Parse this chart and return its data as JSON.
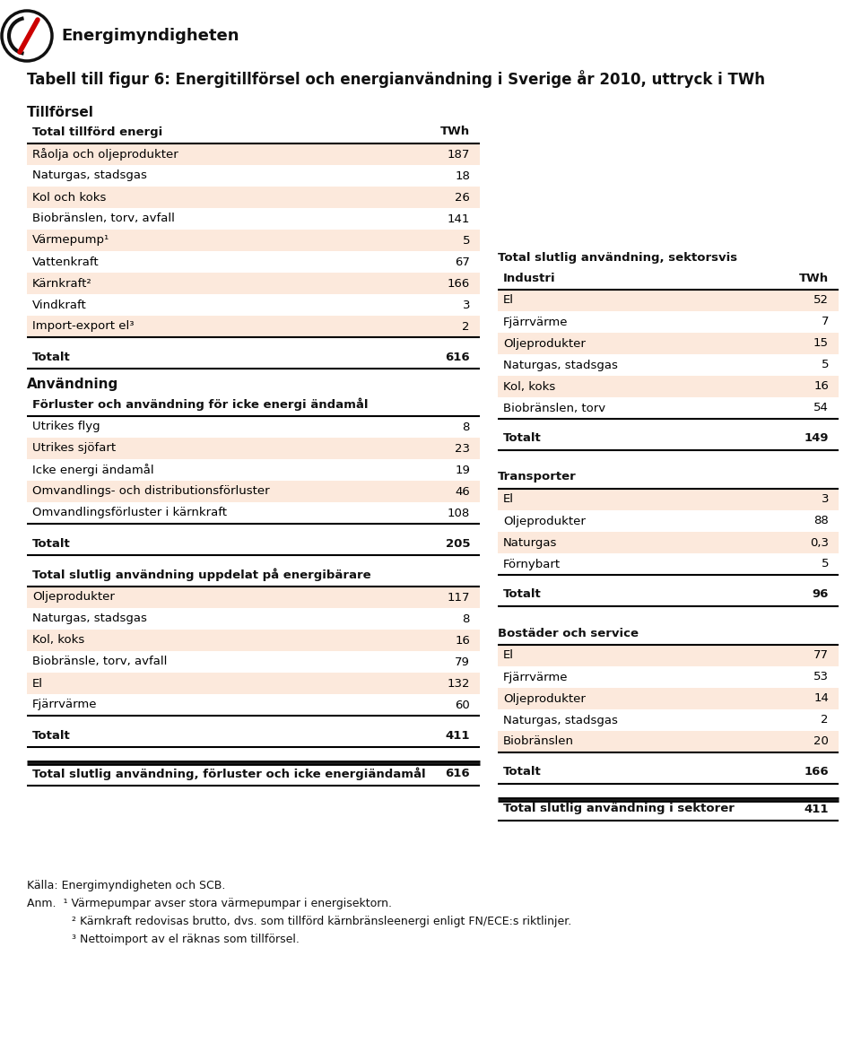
{
  "title": "Tabell till figur 6: Energitillförsel och energianvändning i Sverige år 2010, uttryck i TWh",
  "bg_color": "#ffffff",
  "row_highlight": "#fce9dc",
  "section_left": {
    "header": "Tillförsel",
    "table_header_left": "Total tillförd energi",
    "table_header_right": "TWh",
    "rows": [
      [
        "Råolja och oljeprodukter",
        "187",
        true
      ],
      [
        "Naturgas, stadsgas",
        "18",
        false
      ],
      [
        "Kol och koks",
        "26",
        true
      ],
      [
        "Biobränslen, torv, avfall",
        "141",
        false
      ],
      [
        "Värmepump¹",
        "5",
        true
      ],
      [
        "Vattenkraft",
        "67",
        false
      ],
      [
        "Kärnkraft²",
        "166",
        true
      ],
      [
        "Vindkraft",
        "3",
        false
      ],
      [
        "Import-export el³",
        "2",
        true
      ]
    ],
    "total_row": [
      "Totalt",
      "616"
    ]
  },
  "section_anvandning_left": {
    "header": "Användning",
    "sub_header": "Förluster och användning för icke energi ändamål",
    "rows": [
      [
        "Utrikes flyg",
        "8",
        false
      ],
      [
        "Utrikes sjöfart",
        "23",
        true
      ],
      [
        "Icke energi ändamål",
        "19",
        false
      ],
      [
        "Omvandlings- och distributionsförluster",
        "46",
        true
      ],
      [
        "Omvandlingsförluster i kärnkraft",
        "108",
        false
      ]
    ],
    "total_row": [
      "Totalt",
      "205"
    ]
  },
  "section_anvandning_left2": {
    "sub_header": "Total slutlig användning uppdelat på energibärare",
    "rows": [
      [
        "Oljeprodukter",
        "117",
        true
      ],
      [
        "Naturgas, stadsgas",
        "8",
        false
      ],
      [
        "Kol, koks",
        "16",
        true
      ],
      [
        "Biobränsle, torv, avfall",
        "79",
        false
      ],
      [
        "El",
        "132",
        true
      ],
      [
        "Fjärrvärme",
        "60",
        false
      ]
    ],
    "total_row": [
      "Totalt",
      "411"
    ]
  },
  "section_anvandning_bottom": {
    "text": "Total slutlig användning, förluster och icke energiändamål",
    "value": "616"
  },
  "section_right_industri": {
    "header": "Total slutlig användning, sektorsvis",
    "sub_header": "Industri",
    "sub_header_right": "TWh",
    "rows": [
      [
        "El",
        "52",
        true
      ],
      [
        "Fjärrvärme",
        "7",
        false
      ],
      [
        "Oljeprodukter",
        "15",
        true
      ],
      [
        "Naturgas, stadsgas",
        "5",
        false
      ],
      [
        "Kol, koks",
        "16",
        true
      ],
      [
        "Biobränslen, torv",
        "54",
        false
      ]
    ],
    "total_row": [
      "Totalt",
      "149"
    ]
  },
  "section_right_transporter": {
    "sub_header": "Transporter",
    "rows": [
      [
        "El",
        "3",
        true
      ],
      [
        "Oljeprodukter",
        "88",
        false
      ],
      [
        "Naturgas",
        "0,3",
        true
      ],
      [
        "Förnybart",
        "5",
        false
      ]
    ],
    "total_row": [
      "Totalt",
      "96"
    ]
  },
  "section_right_bostader": {
    "sub_header": "Bostäder och service",
    "rows": [
      [
        "El",
        "77",
        true
      ],
      [
        "Fjärrvärme",
        "53",
        false
      ],
      [
        "Oljeprodukter",
        "14",
        true
      ],
      [
        "Naturgas, stadsgas",
        "2",
        false
      ],
      [
        "Biobränslen",
        "20",
        true
      ]
    ],
    "total_row": [
      "Totalt",
      "166"
    ]
  },
  "section_right_total": {
    "text": "Total slutlig användning i sektorer",
    "value": "411"
  },
  "footnote_source": "Källa: Energimyndigheten och SCB.",
  "footnote_anm": "Anm.",
  "footnotes_numbered": [
    "¹ Värmepumpar avser stora värmepumpar i energisektorn.",
    "² Kärnkraft redovisas brutto, dvs. som tillförd kärnbränsleenergi enligt FN/ECE:s riktlinjer.",
    "³ Nettoimport av el räknas som tillförsel."
  ],
  "logo_text": "Energimyndigheten"
}
